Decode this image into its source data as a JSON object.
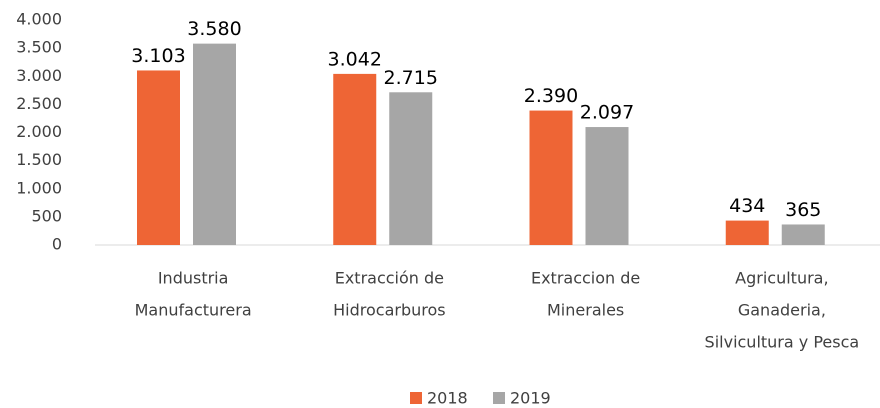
{
  "chart_data": {
    "type": "bar",
    "categories": [
      [
        "Industria",
        "Manufacturera"
      ],
      [
        "Extracción de",
        "Hidrocarburos"
      ],
      [
        "Extraccion de",
        "Minerales"
      ],
      [
        "Agricultura,",
        "Ganaderia,",
        "Silvicultura y Pesca"
      ]
    ],
    "series": [
      {
        "name": "2018",
        "color": "#ee6535",
        "values": [
          3103,
          3042,
          2390,
          434
        ],
        "value_labels": [
          "3.103",
          "3.042",
          "2.390",
          "434"
        ]
      },
      {
        "name": "2019",
        "color": "#a6a6a6",
        "values": [
          3580,
          2715,
          2097,
          365
        ],
        "value_labels": [
          "3.580",
          "2.715",
          "2.097",
          "365"
        ]
      }
    ],
    "ylim": [
      0,
      4000
    ],
    "yticks": [
      0,
      500,
      {
        "value": 1000,
        "label": "1.000"
      },
      {
        "value": 1500,
        "label": "1.500"
      },
      {
        "value": 2000,
        "label": "2.000"
      },
      {
        "value": 2500,
        "label": "2.500"
      },
      {
        "value": 3000,
        "label": "3.000"
      },
      {
        "value": 3500,
        "label": "3.500"
      },
      {
        "value": 4000,
        "label": "4.000"
      }
    ],
    "grid": false,
    "legend": "bottom"
  }
}
